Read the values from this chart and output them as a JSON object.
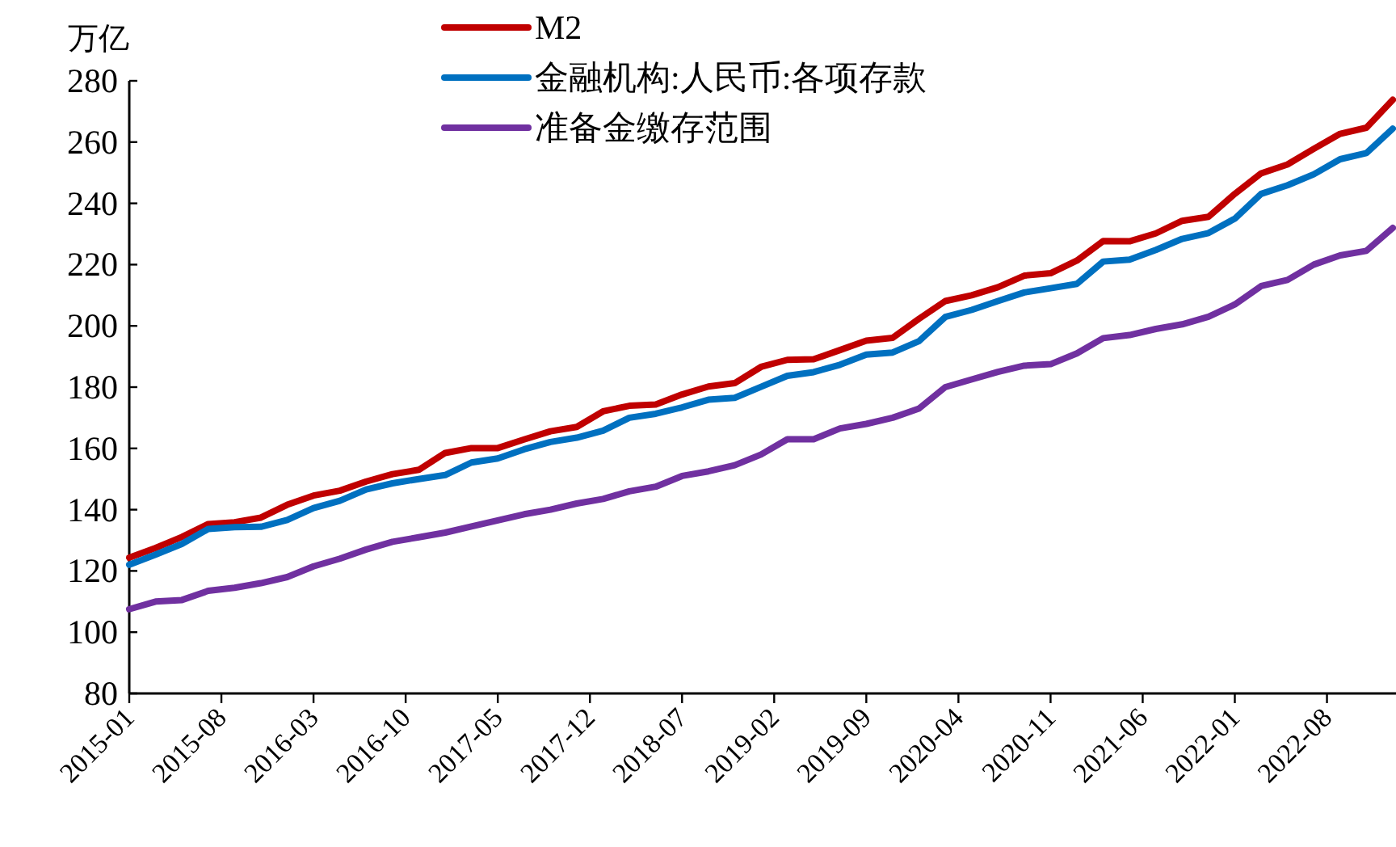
{
  "chart_data": {
    "type": "line",
    "ylabel": "万亿",
    "legend": "top",
    "grid": false,
    "marker": "none",
    "line_style": "solid",
    "x": [
      "2015-01",
      "2015-03",
      "2015-05",
      "2015-07",
      "2015-09",
      "2015-11",
      "2016-01",
      "2016-03",
      "2016-05",
      "2016-07",
      "2016-09",
      "2016-11",
      "2017-01",
      "2017-03",
      "2017-05",
      "2017-07",
      "2017-09",
      "2017-11",
      "2018-01",
      "2018-03",
      "2018-05",
      "2018-07",
      "2018-09",
      "2018-11",
      "2019-01",
      "2019-03",
      "2019-05",
      "2019-07",
      "2019-09",
      "2019-11",
      "2020-01",
      "2020-03",
      "2020-05",
      "2020-07",
      "2020-09",
      "2020-11",
      "2021-01",
      "2021-03",
      "2021-05",
      "2021-07",
      "2021-09",
      "2021-11",
      "2022-01",
      "2022-03",
      "2022-05",
      "2022-07",
      "2022-09",
      "2022-11",
      "2023-01"
    ],
    "xlim": [
      "2015-01",
      "2023-01"
    ],
    "xticks": [
      "2015-01",
      "2015-08",
      "2016-03",
      "2016-10",
      "2017-05",
      "2017-12",
      "2018-07",
      "2019-02",
      "2019-09",
      "2020-04",
      "2020-11",
      "2021-06",
      "2022-01",
      "2022-08"
    ],
    "ylim": [
      80,
      280
    ],
    "yticks": [
      80,
      100,
      120,
      140,
      160,
      180,
      200,
      220,
      240,
      260,
      280
    ],
    "series": [
      {
        "name": "M2",
        "color": "#c00000",
        "values": [
          124.3,
          127.5,
          131.1,
          135.3,
          135.9,
          137.4,
          141.6,
          144.6,
          146.2,
          149.2,
          151.6,
          153.0,
          158.5,
          160.1,
          160.1,
          162.9,
          165.6,
          167.0,
          172.1,
          173.9,
          174.3,
          177.6,
          180.2,
          181.3,
          186.6,
          188.9,
          189.1,
          192.1,
          195.2,
          196.1,
          202.3,
          208.1,
          210.0,
          212.6,
          216.4,
          217.2,
          221.3,
          227.7,
          227.6,
          230.2,
          234.3,
          235.6,
          243.1,
          249.8,
          252.7,
          257.8,
          262.7,
          264.7,
          273.8
        ]
      },
      {
        "name": "金融机构:人民币:各项存款",
        "color": "#0070c0",
        "values": [
          122.0,
          125.3,
          128.8,
          133.7,
          134.3,
          134.4,
          136.6,
          140.5,
          142.9,
          146.6,
          148.6,
          150.0,
          151.3,
          155.4,
          156.7,
          159.7,
          162.1,
          163.5,
          165.8,
          170.0,
          171.3,
          173.4,
          175.9,
          176.5,
          180.1,
          183.7,
          184.9,
          187.3,
          190.6,
          191.3,
          195.0,
          202.9,
          205.2,
          208.1,
          210.9,
          212.3,
          213.7,
          221.0,
          221.6,
          224.8,
          228.4,
          230.3,
          235.0,
          243.1,
          245.9,
          249.5,
          254.4,
          256.4,
          264.4
        ]
      },
      {
        "name": "准备金缴存范围",
        "color": "#7030a0",
        "values": [
          107.5,
          110.0,
          110.5,
          113.5,
          114.5,
          116.0,
          118.0,
          121.5,
          124.0,
          127.0,
          129.5,
          131.0,
          132.5,
          134.5,
          136.5,
          138.5,
          140.0,
          142.0,
          143.5,
          146.0,
          147.5,
          151.0,
          152.5,
          154.5,
          158.0,
          163.0,
          163.0,
          166.5,
          168.0,
          170.0,
          173.0,
          180.0,
          182.5,
          185.0,
          187.0,
          187.5,
          191.0,
          196.0,
          197.0,
          199.0,
          200.5,
          203.0,
          207.0,
          213.0,
          215.0,
          220.0,
          223.0,
          224.5,
          232.0
        ]
      }
    ]
  }
}
